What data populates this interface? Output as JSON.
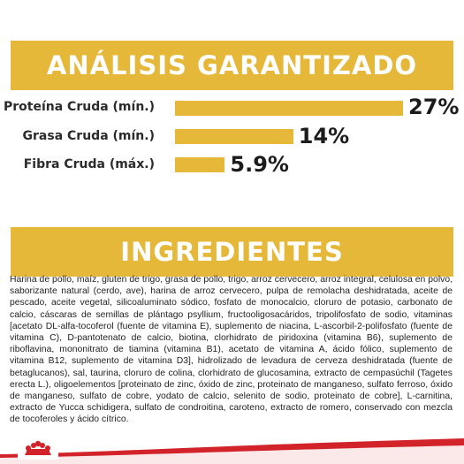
{
  "analysis": {
    "title": "ANÁLISIS GARANTIZADO",
    "rows": [
      {
        "label": "Proteína Cruda (mín.)",
        "value": "27%",
        "percent": 27
      },
      {
        "label": "Grasa Cruda (mín.)",
        "value": "14%",
        "percent": 14
      },
      {
        "label": "Fibra Cruda (máx.)",
        "value": "5.9%",
        "percent": 5.9
      }
    ]
  },
  "ingredients": {
    "title": "INGREDIENTES",
    "text": "Harina de pollo, maíz, gluten de trigo, grasa de pollo, trigo, arroz cervecero, arroz integral, celulosa en polvo, saborizante natural (cerdo, ave), harina de arroz cervecero, pulpa de remolacha deshidratada, aceite de pescado, aceite vegetal, silicoaluminato sódico, fosfato de monocalcio, cloruro de potasio, carbonato de calcio, cáscaras de semillas de plántago psyllium, fructooligosacáridos, tripolifosfato de sodio, vitaminas [acetato DL-alfa-tocoferol (fuente de vitamina E), suplemento de niacina, L-ascorbil-2-polifosfato (fuente de vitamina C), D-pantotenato de calcio, biotina, clorhidrato de piridoxina (vitamina B6), suplemento de riboflavina, mononitrato de tiamina (vitamina B1), acetato de vitamina A, ácido fólico, suplemento de vitamina B12, suplemento de vitamina D3], hidrolizado de levadura de cerveza deshidratada (fuente de betaglucanos), sal, taurina, cloruro de colina, clorhidrato de glucosamina, extracto de cempasúchil (Tagetes erecta L.), oligoelementos [proteinato de zinc, óxido de zinc, proteinato de manganeso, sulfato ferroso, óxido de manganeso, sulfato de cobre, yodato de calcio, selenito de sodio, proteinato de cobre], L-carnitina, extracto de Yucca schidigera, sulfato de condroitina, caroteno, extracto de romero, conservado con mezcla de tocoferoles y ácido cítrico."
  },
  "colors": {
    "accent": "#e6b83a",
    "brand_red": "#d2232a"
  },
  "icons": {
    "brand": "royal-crown-logo-icon"
  }
}
